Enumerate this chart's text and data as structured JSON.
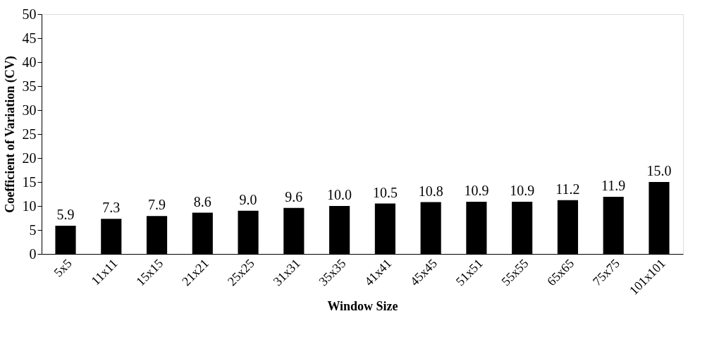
{
  "chart_data": {
    "type": "bar",
    "xlabel": "Window Size",
    "ylabel": "Coefficient of Variation (CV)",
    "categories": [
      "5x5",
      "11x11",
      "15x15",
      "21x21",
      "25x25",
      "31x31",
      "35x35",
      "41x41",
      "45x45",
      "51x51",
      "55x55",
      "65x65",
      "75x75",
      "101x101"
    ],
    "values": [
      5.9,
      7.3,
      7.9,
      8.6,
      9.0,
      9.6,
      10.0,
      10.5,
      10.8,
      10.9,
      10.9,
      11.2,
      11.9,
      15.0
    ],
    "value_labels": [
      "5.9",
      "7.3",
      "7.9",
      "8.6",
      "9.0",
      "9.6",
      "10.0",
      "10.5",
      "10.8",
      "10.9",
      "10.9",
      "11.2",
      "11.9",
      "15.0"
    ],
    "color": "#000000",
    "ylim": [
      0,
      50
    ],
    "yticks": [
      0,
      5,
      10,
      15,
      20,
      25,
      30,
      35,
      40,
      45,
      50
    ],
    "grid": false
  }
}
